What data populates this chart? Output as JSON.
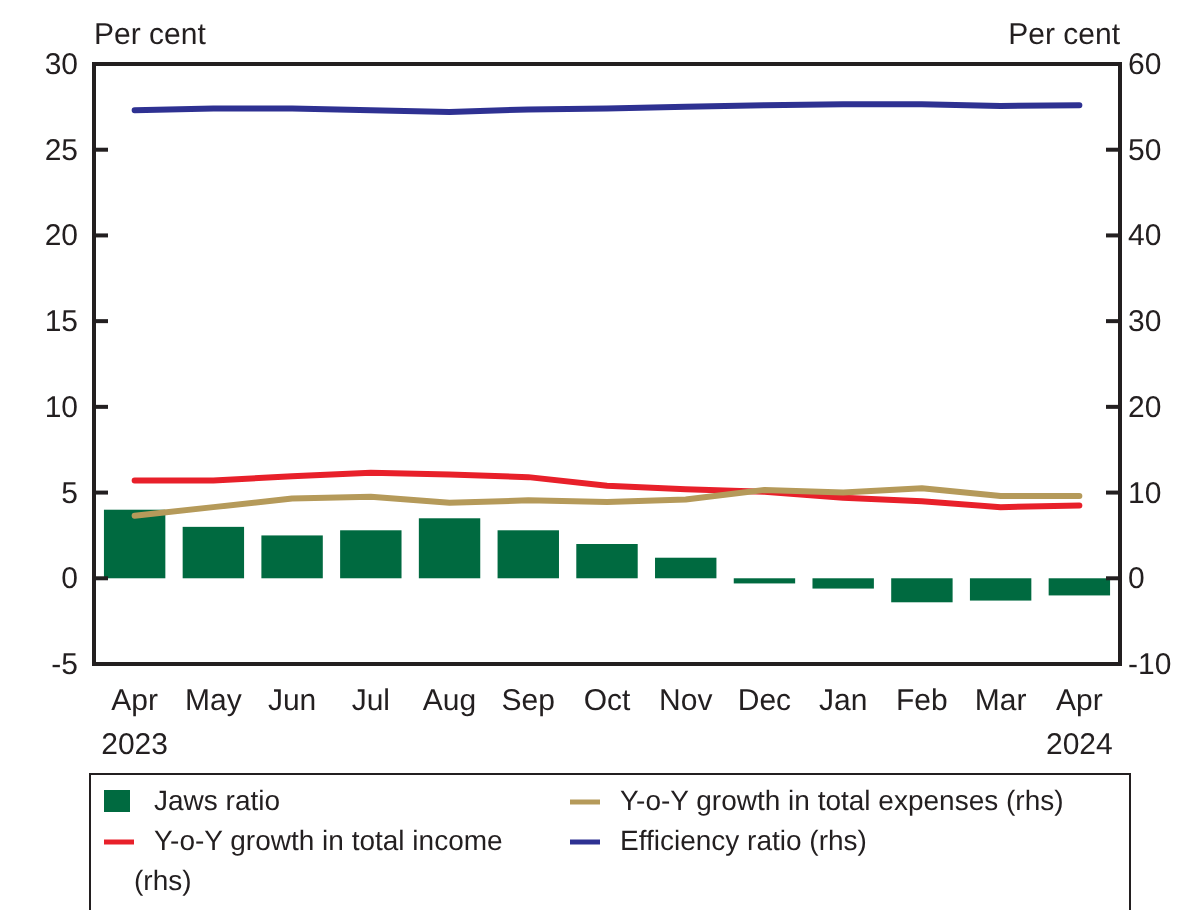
{
  "chart_data": {
    "type": "bar",
    "ylabel": "Per cent",
    "y2label": "Per cent",
    "categories": [
      "Apr\n2023",
      "May",
      "Jun",
      "Jul",
      "Aug",
      "Sep",
      "Oct",
      "Nov",
      "Dec",
      "Jan",
      "Feb",
      "Mar",
      "Apr\n2024"
    ],
    "series": [
      {
        "name": "Jaws ratio",
        "color": "#006a40",
        "values": [
          4.0,
          3.0,
          2.5,
          2.8,
          3.5,
          2.8,
          2.0,
          1.2,
          -0.3,
          -0.6,
          -1.4,
          -1.3,
          -1.0
        ]
      },
      {
        "name": "Y-o-Y growth in total income (rhs)",
        "type": "line",
        "axis": "y2",
        "color": "#e8202a",
        "values": [
          11.4,
          11.4,
          11.9,
          12.3,
          12.1,
          11.8,
          10.8,
          10.4,
          10.1,
          9.4,
          9.0,
          8.3,
          8.5
        ]
      },
      {
        "name": "Y-o-Y growth in total expenses (rhs)",
        "type": "line",
        "axis": "y2",
        "color": "#b59a5a",
        "values": [
          7.3,
          8.3,
          9.3,
          9.5,
          8.8,
          9.1,
          8.9,
          9.2,
          10.3,
          10.0,
          10.5,
          9.6,
          9.6
        ]
      },
      {
        "name": "Efficiency ratio (rhs)",
        "type": "line",
        "axis": "y2",
        "color": "#2e3192",
        "values": [
          54.6,
          54.8,
          54.8,
          54.6,
          54.4,
          54.7,
          54.8,
          55.0,
          55.2,
          55.3,
          55.3,
          55.1,
          55.2
        ]
      }
    ],
    "ylim": [
      -5,
      30
    ],
    "yticks": [
      -5,
      0,
      5,
      10,
      15,
      20,
      25,
      30
    ],
    "y2lim": [
      -10,
      60
    ],
    "y2ticks": [
      -10,
      0,
      10,
      20,
      30,
      40,
      50,
      60
    ],
    "grid": false,
    "legend": "bottom",
    "line_style": "solid",
    "marker": "none"
  }
}
